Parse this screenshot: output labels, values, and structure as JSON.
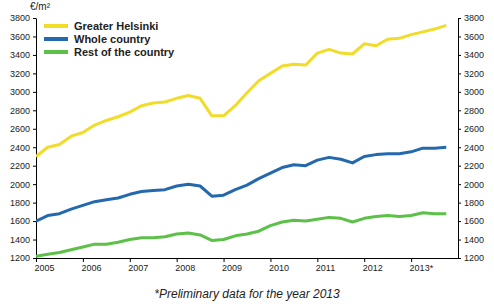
{
  "chart_data": {
    "type": "line",
    "ylabel": "€/m²",
    "footnote": "*Preliminary data for the year 2013",
    "x": [
      2005,
      2005.25,
      2005.5,
      2005.75,
      2006,
      2006.25,
      2006.5,
      2006.75,
      2007,
      2007.25,
      2007.5,
      2007.75,
      2008,
      2008.25,
      2008.5,
      2008.75,
      2009,
      2009.25,
      2009.5,
      2009.75,
      2010,
      2010.25,
      2010.5,
      2010.75,
      2011,
      2011.25,
      2011.5,
      2011.75,
      2012,
      2012.25,
      2012.5,
      2012.75,
      2013,
      2013.25,
      2013.5,
      2013.75
    ],
    "series": [
      {
        "name": "Greater Helsinki",
        "color": "#f2dc2a",
        "values": [
          2300,
          2400,
          2430,
          2520,
          2560,
          2640,
          2690,
          2730,
          2780,
          2850,
          2880,
          2890,
          2930,
          2960,
          2930,
          2740,
          2740,
          2850,
          2990,
          3120,
          3200,
          3280,
          3300,
          3290,
          3420,
          3460,
          3420,
          3410,
          3520,
          3500,
          3570,
          3580,
          3620,
          3650,
          3680,
          3720
        ]
      },
      {
        "name": "Whole country",
        "color": "#2468ad",
        "values": [
          1600,
          1660,
          1680,
          1730,
          1770,
          1810,
          1830,
          1850,
          1890,
          1920,
          1930,
          1940,
          1980,
          2000,
          1980,
          1870,
          1880,
          1940,
          1990,
          2060,
          2120,
          2180,
          2210,
          2200,
          2260,
          2290,
          2270,
          2230,
          2300,
          2320,
          2330,
          2330,
          2350,
          2390,
          2390,
          2400
        ]
      },
      {
        "name": "Rest of the country",
        "color": "#5cc049",
        "values": [
          1220,
          1240,
          1260,
          1290,
          1320,
          1350,
          1350,
          1370,
          1400,
          1420,
          1420,
          1430,
          1460,
          1470,
          1450,
          1390,
          1400,
          1440,
          1460,
          1490,
          1550,
          1590,
          1610,
          1600,
          1620,
          1640,
          1630,
          1590,
          1630,
          1650,
          1660,
          1650,
          1660,
          1690,
          1680,
          1680
        ]
      }
    ],
    "xlim": [
      2005,
      2014
    ],
    "xticks": [
      2005,
      2006,
      2007,
      2008,
      2009,
      2010,
      2011,
      2012,
      {
        "value": 2013,
        "label": "2013*"
      }
    ],
    "ylim": [
      1200,
      3800
    ],
    "yticks": [
      1200,
      1400,
      1600,
      1800,
      2000,
      2200,
      2400,
      2600,
      2800,
      3000,
      3200,
      3400,
      3600,
      3800
    ],
    "grid": false,
    "legend": "upper left"
  }
}
